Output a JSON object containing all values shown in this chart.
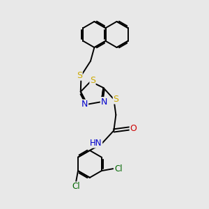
{
  "bg_color": "#e8e8e8",
  "bond_color": "#000000",
  "atom_colors": {
    "S": "#ccaa00",
    "N": "#0000cc",
    "O": "#cc0000",
    "Cl": "#006600",
    "H": "#558888",
    "C": "#000000"
  },
  "lw": 1.4,
  "fs": 8.5
}
